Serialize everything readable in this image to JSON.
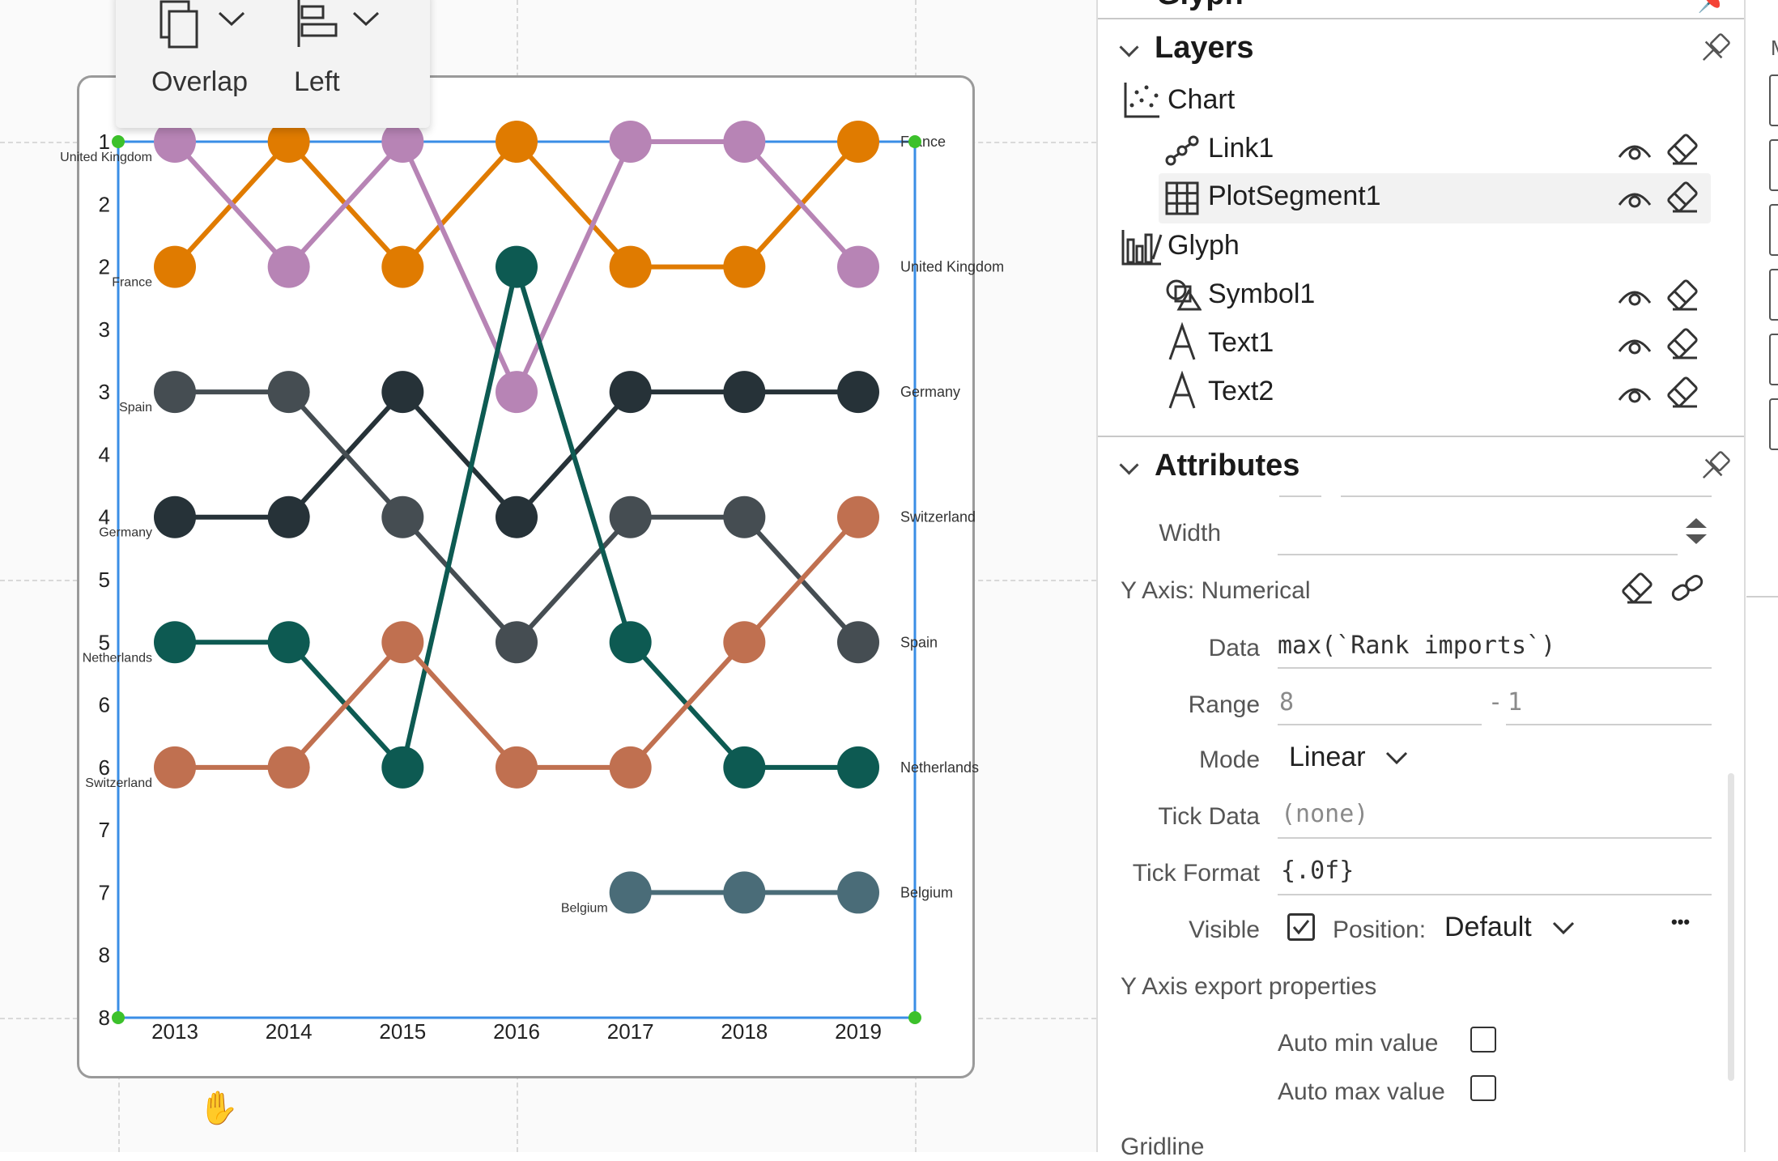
{
  "toolbar": {
    "overlap_label": "Overlap",
    "left_label": "Left"
  },
  "chart_data": {
    "type": "line",
    "x": [
      2013,
      2014,
      2015,
      2016,
      2017,
      2018,
      2019
    ],
    "x_tick_labels": [
      "2013",
      "2014",
      "2015",
      "2016",
      "2017",
      "2018",
      "2019"
    ],
    "y_tick_labels": [
      "1",
      "2",
      "2",
      "3",
      "3",
      "4",
      "4",
      "5",
      "5",
      "6",
      "6",
      "7",
      "7",
      "8",
      "8"
    ],
    "y_range": [
      8,
      1
    ],
    "y_ticks_step": 0.5,
    "y_reversed": true,
    "series": [
      {
        "name": "France",
        "color": "#e07b00",
        "values": [
          2,
          1,
          2,
          1,
          2,
          2,
          1
        ],
        "left_label": "France",
        "right_label": "France"
      },
      {
        "name": "United Kingdom",
        "color": "#b784b5",
        "values": [
          1,
          2,
          1,
          3,
          1,
          1,
          2
        ],
        "left_label": "United Kingdom",
        "right_label": "United Kingdom"
      },
      {
        "name": "Germany",
        "color": "#263238",
        "values": [
          4,
          4,
          3,
          4,
          3,
          3,
          3
        ],
        "left_label": "Germany",
        "right_label": "Germany"
      },
      {
        "name": "Spain",
        "color": "#454d52",
        "values": [
          3,
          3,
          4,
          5,
          4,
          4,
          5
        ],
        "left_label": "Spain",
        "right_label": "Spain"
      },
      {
        "name": "Netherlands",
        "color": "#0d5a52",
        "values": [
          5,
          5,
          6,
          2,
          5,
          6,
          6
        ],
        "left_label": "Netherlands",
        "right_label": "Netherlands"
      },
      {
        "name": "Switzerland",
        "color": "#c07050",
        "values": [
          6,
          6,
          5,
          6,
          6,
          5,
          4
        ],
        "left_label": "Switzerland",
        "right_label": "Switzerland"
      },
      {
        "name": "Belgium",
        "color": "#4a6c78",
        "values": [
          null,
          null,
          null,
          null,
          7,
          7,
          7
        ],
        "left_label": "Belgium",
        "right_label": "Belgium"
      }
    ],
    "grid": false,
    "legend": "none"
  },
  "panel": {
    "top_section_title": "Glyph",
    "layers": {
      "title": "Layers",
      "chart_label": "Chart",
      "chart_children": [
        "Link1",
        "PlotSegment1"
      ],
      "glyph_label": "Glyph",
      "glyph_children": [
        "Symbol1",
        "Text1",
        "Text2"
      ]
    },
    "attributes": {
      "title": "Attributes",
      "width_label": "Width",
      "y_axis_heading": "Y Axis: Numerical",
      "data_label": "Data",
      "data_value": "max(`Rank imports`)",
      "range_label": "Range",
      "range_min": "8",
      "range_sep": "-",
      "range_max": "1",
      "mode_label": "Mode",
      "mode_value": "Linear",
      "tick_data_label": "Tick Data",
      "tick_data_value": "(none)",
      "tick_format_label": "Tick Format",
      "tick_format_value": "{.0f}",
      "visible_label": "Visible",
      "position_label": "Position:",
      "position_value": "Default",
      "more_label": "•••",
      "export_heading": "Y Axis export properties",
      "auto_min_label": "Auto min value",
      "auto_max_label": "Auto max value",
      "gridline_label": "Gridline"
    },
    "edge_letter": "M"
  }
}
